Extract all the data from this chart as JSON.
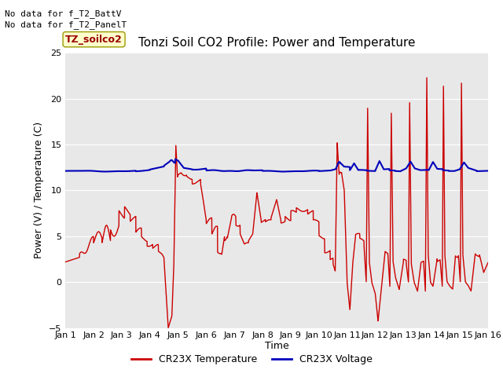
{
  "title": "Tonzi Soil CO2 Profile: Power and Temperature",
  "ylabel": "Power (V) / Temperature (C)",
  "xlabel": "Time",
  "xlim": [
    0,
    15
  ],
  "ylim": [
    -5,
    25
  ],
  "yticks": [
    -5,
    0,
    5,
    10,
    15,
    20,
    25
  ],
  "xtick_labels": [
    "Jan 1",
    "Jan 2",
    "Jan 3",
    "Jan 4",
    "Jan 5",
    "Jan 6",
    "Jan 7",
    "Jan 8",
    "Jan 9",
    "Jan 10",
    "Jan 11",
    "Jan 12",
    "Jan 13",
    "Jan 14",
    "Jan 15",
    "Jan 16"
  ],
  "no_data_texts": [
    "No data for f_T2_BattV",
    "No data for f_T2_PanelT"
  ],
  "legend_label": "TZ_soilco2",
  "legend_entries": [
    "CR23X Temperature",
    "CR23X Voltage"
  ],
  "legend_colors": [
    "#cc0000",
    "#0000bb"
  ],
  "bg_color": "#e8e8e8",
  "red_color": "#cc0000",
  "blue_color": "#0000bb",
  "title_fontsize": 11,
  "axis_fontsize": 9,
  "tick_fontsize": 8
}
